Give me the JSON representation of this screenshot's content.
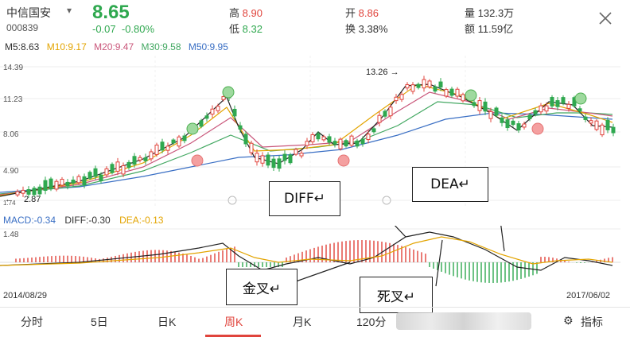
{
  "header": {
    "stock_name": "中信国安",
    "stock_code": "000839",
    "price": "8.65",
    "change": "-0.07",
    "change_pct": "-0.80%",
    "high_label": "高",
    "high_value": "8.90",
    "low_label": "低",
    "low_value": "8.32",
    "open_label": "开",
    "open_value": "8.86",
    "turnover_label": "换",
    "turnover_value": "3.38%",
    "volume_label": "量",
    "volume_value": "132.3万",
    "amount_label": "额",
    "amount_value": "11.59亿"
  },
  "ma": {
    "m5": "M5:8.63",
    "m10": "M10:9.17",
    "m20": "M20:9.47",
    "m30": "M30:9.58",
    "m50": "M50:9.95"
  },
  "colors": {
    "up": "#e0443c",
    "down": "#2fa84f",
    "m5": "#333333",
    "m10": "#e3a400",
    "m20": "#c9567a",
    "m30": "#43a862",
    "m50": "#3a6fc4"
  },
  "main_chart": {
    "y_labels": [
      "14.39",
      "11.23",
      "8.06",
      "4.90"
    ],
    "low_marker": "2.87",
    "high_marker": "13.26 →",
    "left_edge": "1.74"
  },
  "macd": {
    "macd_label": "MACD:-0.34",
    "diff_label": "DIFF:-0.30",
    "dea_label": "DEA:-0.13",
    "top_value": "1.48"
  },
  "annotations": {
    "diff": "DIFF↵",
    "dea": "DEA↵",
    "golden": "金叉↵",
    "death": "死叉↵"
  },
  "dates": {
    "start": "2014/08/29",
    "end": "2017/06/02"
  },
  "tabs": [
    "分时",
    "5日",
    "日K",
    "周K",
    "月K",
    "120分",
    "指标"
  ]
}
